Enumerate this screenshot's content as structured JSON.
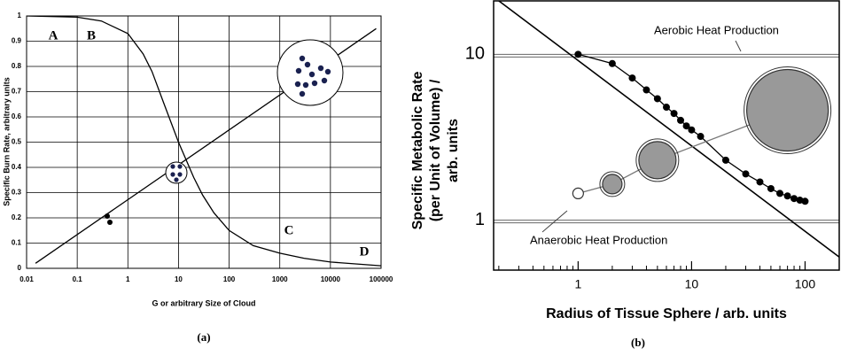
{
  "chart_data": [
    {
      "type": "line",
      "x_scale": "log",
      "y_scale": "linear",
      "grid": "both",
      "xlabel": "G or arbitrary Size of Cloud",
      "ylabel": "Specific Burn Rate, arbitrary units",
      "caption": "(a)",
      "xlim": [
        0.01,
        100000
      ],
      "ylim": [
        0,
        1
      ],
      "xticks": [
        0.01,
        0.1,
        1,
        10,
        100,
        1000,
        10000,
        100000
      ],
      "yticks": [
        0,
        0.1,
        0.2,
        0.3,
        0.4,
        0.5,
        0.6,
        0.7,
        0.8,
        0.9,
        1
      ],
      "annotations": [
        "A",
        "B",
        "C",
        "D"
      ],
      "series": [
        {
          "color": "#000000",
          "x": [
            0.01,
            0.1,
            0.3,
            1,
            2,
            3,
            5,
            10,
            20,
            30,
            50,
            100,
            300,
            1000,
            3000,
            10000,
            100000
          ],
          "values": [
            1.0,
            0.995,
            0.98,
            0.93,
            0.85,
            0.78,
            0.66,
            0.5,
            0.36,
            0.29,
            0.22,
            0.15,
            0.09,
            0.06,
            0.04,
            0.025,
            0.01
          ]
        },
        {
          "color": "#000000",
          "x": [
            0.015,
            80000
          ],
          "values": [
            0.02,
            0.95
          ]
        }
      ]
    },
    {
      "type": "line",
      "x_scale": "log",
      "y_scale": "log",
      "grid": "y",
      "xlabel": "Radius of Tissue Sphere / arb. units",
      "ylabel": [
        "Specific Metabolic Rate",
        "(per Unit of Volume) /",
        "arb. units"
      ],
      "caption": "(b)",
      "xlim": [
        0.18,
        200
      ],
      "ylim": [
        0.5,
        21
      ],
      "xticks": [
        1,
        10,
        100
      ],
      "yticks": [
        1,
        10
      ],
      "annotations": [
        "Aerobic Heat Production",
        "Anaerobic Heat Production"
      ],
      "series": [
        {
          "color": "#000000",
          "marker": "dot",
          "x": [
            1,
            2,
            3,
            4,
            5,
            6,
            7,
            8,
            9,
            10,
            12,
            20,
            30,
            40,
            50,
            60,
            70,
            80,
            90,
            100
          ],
          "values": [
            10,
            8.8,
            7.2,
            6.1,
            5.4,
            4.8,
            4.4,
            4.0,
            3.7,
            3.5,
            3.2,
            2.3,
            1.9,
            1.7,
            1.55,
            1.45,
            1.4,
            1.35,
            1.32,
            1.3
          ]
        },
        {
          "color": "#000000",
          "x": [
            0.2,
            200
          ],
          "values": [
            21,
            0.6
          ]
        },
        {
          "color": "#999999",
          "marker": "ring",
          "x": [
            1,
            2,
            5,
            70
          ],
          "values": [
            1.45,
            1.65,
            2.3,
            4.6
          ]
        }
      ]
    }
  ]
}
